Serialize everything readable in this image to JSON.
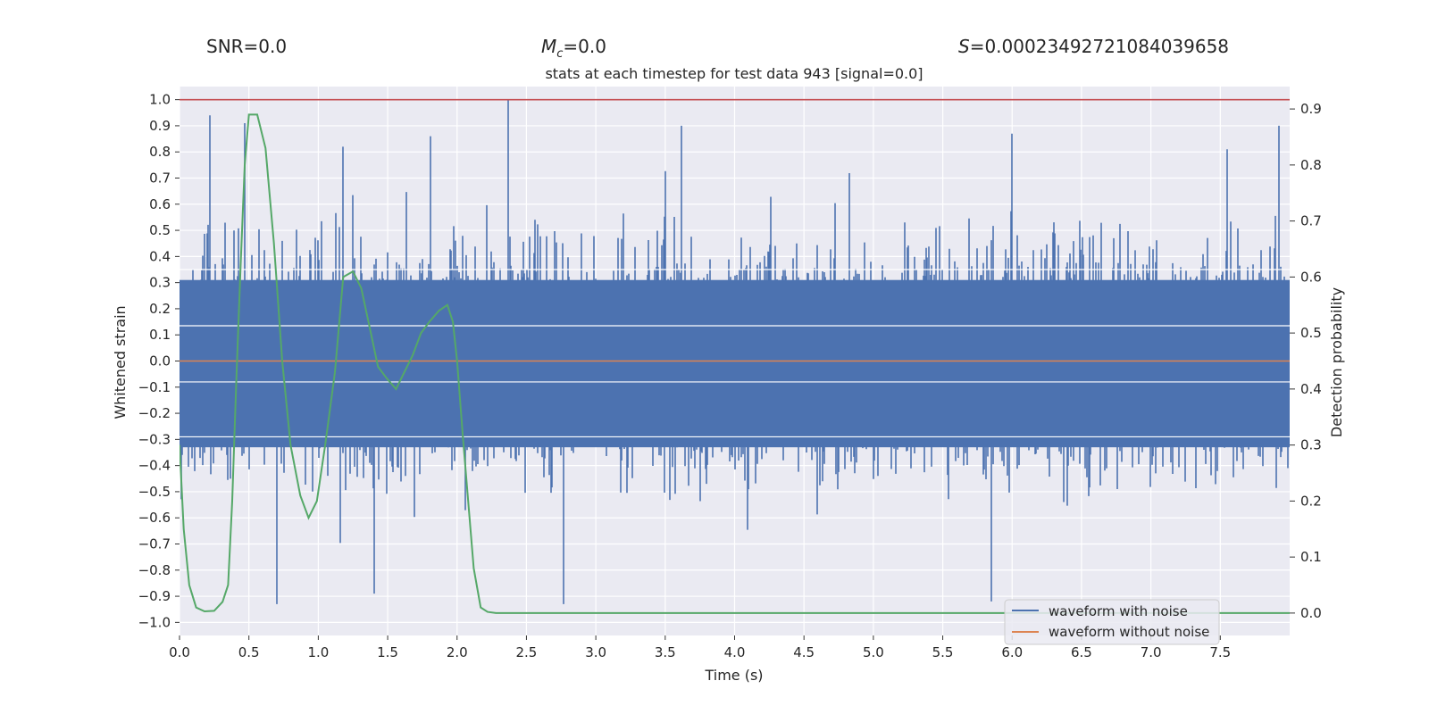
{
  "header": {
    "snr_label": "SNR=0.0",
    "mc_symbol": "M",
    "mc_subscript": "c",
    "mc_value": "=0.0",
    "s_symbol": "S",
    "s_value": "=0.00023492721084039658"
  },
  "chart_data": {
    "type": "line",
    "title": "stats at each timestep for test data 943 [signal=0.0]",
    "xlabel": "Time (s)",
    "ylabel": "Whitened strain",
    "y2label": "Detection probability",
    "xlim": [
      0.0,
      8.0
    ],
    "ylim": [
      -1.05,
      1.05
    ],
    "y2lim": [
      -0.04,
      0.94
    ],
    "x_ticks": [
      "0.0",
      "0.5",
      "1.0",
      "1.5",
      "2.0",
      "2.5",
      "3.0",
      "3.5",
      "4.0",
      "4.5",
      "5.0",
      "5.5",
      "6.0",
      "6.5",
      "7.0",
      "7.5"
    ],
    "y_ticks": [
      "1.0",
      "0.9",
      "0.8",
      "0.7",
      "0.6",
      "0.5",
      "0.4",
      "0.3",
      "0.2",
      "0.1",
      "0.0",
      "−0.1",
      "−0.2",
      "−0.3",
      "−0.4",
      "−0.5",
      "−0.6",
      "−0.7",
      "−0.8",
      "−0.9",
      "−1.0"
    ],
    "y2_ticks": [
      "0.9",
      "0.8",
      "0.7",
      "0.6",
      "0.5",
      "0.4",
      "0.3",
      "0.2",
      "0.1",
      "0.0"
    ],
    "grid": true,
    "legend_position": "bottom-right",
    "colors": {
      "background": "#eaeaf2",
      "grid": "#ffffff",
      "noisy": "#4c72b0",
      "clean": "#dd8452",
      "probability": "#55a868",
      "threshold": "#c44e52"
    },
    "series": [
      {
        "name": "waveform with noise",
        "note": "dense noisy strain, amplitude mostly within about ±0.5, peaks reaching about ±1.0",
        "spikes": [
          {
            "x": 0.22,
            "y": 0.94
          },
          {
            "x": 0.47,
            "y": 0.91
          },
          {
            "x": 0.7,
            "y": -0.93
          },
          {
            "x": 1.18,
            "y": 0.82
          },
          {
            "x": 1.4,
            "y": -0.89
          },
          {
            "x": 1.81,
            "y": 0.86
          },
          {
            "x": 2.37,
            "y": 1.0
          },
          {
            "x": 2.77,
            "y": -0.93
          },
          {
            "x": 3.62,
            "y": 0.9
          },
          {
            "x": 3.8,
            "y": -0.47
          },
          {
            "x": 5.85,
            "y": -0.92
          },
          {
            "x": 6.0,
            "y": 0.87
          },
          {
            "x": 7.55,
            "y": 0.81
          },
          {
            "x": 7.92,
            "y": 0.9
          }
        ]
      },
      {
        "name": "waveform without noise",
        "y": 0.0
      },
      {
        "name": "detection probability",
        "axis": "right",
        "x": [
          0.0,
          0.03,
          0.07,
          0.12,
          0.18,
          0.25,
          0.31,
          0.35,
          0.38,
          0.41,
          0.44,
          0.47,
          0.5,
          0.56,
          0.62,
          0.68,
          0.74,
          0.8,
          0.87,
          0.93,
          0.99,
          1.05,
          1.12,
          1.18,
          1.25,
          1.31,
          1.37,
          1.43,
          1.49,
          1.56,
          1.62,
          1.68,
          1.74,
          1.8,
          1.87,
          1.93,
          1.97,
          2.0,
          2.04,
          2.08,
          2.12,
          2.17,
          2.22,
          2.28,
          8.0
        ],
        "y": [
          0.3,
          0.15,
          0.05,
          0.01,
          0.003,
          0.004,
          0.02,
          0.05,
          0.2,
          0.42,
          0.62,
          0.8,
          0.89,
          0.89,
          0.83,
          0.66,
          0.45,
          0.3,
          0.21,
          0.17,
          0.2,
          0.3,
          0.43,
          0.6,
          0.61,
          0.58,
          0.51,
          0.44,
          0.42,
          0.4,
          0.43,
          0.46,
          0.5,
          0.52,
          0.54,
          0.55,
          0.52,
          0.45,
          0.32,
          0.2,
          0.08,
          0.01,
          0.002,
          0.0,
          0.0
        ]
      }
    ],
    "threshold": {
      "y": 1.0
    }
  }
}
